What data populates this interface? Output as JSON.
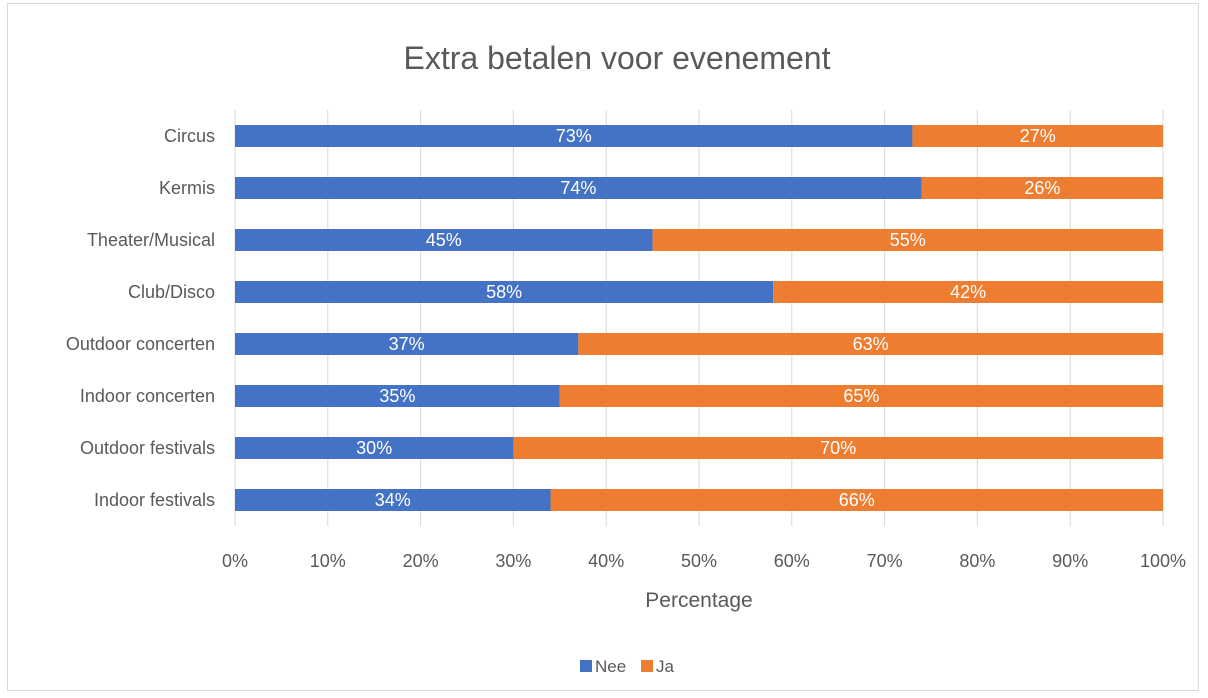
{
  "chart_data": {
    "type": "bar",
    "orientation": "horizontal",
    "stacked": "percent",
    "title": "Extra betalen voor evenement",
    "xlabel": "Percentage",
    "ylabel": "",
    "xlim": [
      0,
      100
    ],
    "x_ticks": [
      "0%",
      "10%",
      "20%",
      "30%",
      "40%",
      "50%",
      "60%",
      "70%",
      "80%",
      "90%",
      "100%"
    ],
    "categories": [
      "Circus",
      "Kermis",
      "Theater/Musical",
      "Club/Disco",
      "Outdoor concerten",
      "Indoor concerten",
      "Outdoor festivals",
      "Indoor festivals"
    ],
    "series": [
      {
        "name": "Nee",
        "color": "#4472C4",
        "values": [
          73,
          74,
          45,
          58,
          37,
          35,
          30,
          34
        ],
        "labels": [
          "73%",
          "74%",
          "45%",
          "58%",
          "37%",
          "35%",
          "30%",
          "34%"
        ]
      },
      {
        "name": "Ja",
        "color": "#ED7D31",
        "values": [
          27,
          26,
          55,
          42,
          63,
          65,
          70,
          66
        ],
        "labels": [
          "27%",
          "26%",
          "55%",
          "42%",
          "63%",
          "65%",
          "70%",
          "66%"
        ]
      }
    ],
    "grid": true,
    "legend_position": "bottom"
  }
}
